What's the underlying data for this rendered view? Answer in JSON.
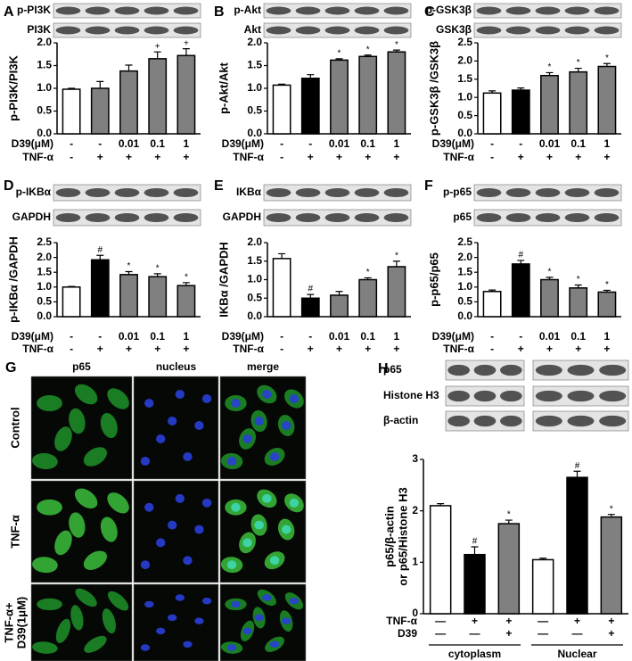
{
  "chart_data": [
    {
      "label": "A",
      "type": "bar",
      "blots": [
        "p-PI3K",
        "PI3K"
      ],
      "ylabel": "p-PI3K/PI3K",
      "ylim": [
        0,
        2
      ],
      "yticks": [
        {
          "value": 0,
          "label": "0.0"
        },
        0.5,
        {
          "value": 1,
          "label": "1.0"
        },
        1.5,
        {
          "value": 2,
          "label": "2.0"
        }
      ],
      "values": [
        0.98,
        1.0,
        1.38,
        1.65,
        1.72
      ],
      "errors": [
        0.02,
        0.15,
        0.13,
        0.15,
        0.15
      ],
      "colors": [
        "#ffffff",
        "#808080",
        "#808080",
        "#808080",
        "#808080"
      ],
      "markers": [
        null,
        null,
        null,
        "+",
        "+"
      ],
      "rows": [
        {
          "label": "D39(μM)",
          "cells": [
            "-",
            "-",
            "0.01",
            "0.1",
            "1"
          ]
        },
        {
          "label": "TNF-α",
          "cells": [
            "-",
            "+",
            "+",
            "+",
            "+"
          ]
        }
      ]
    },
    {
      "label": "B",
      "type": "bar",
      "blots": [
        "p-Akt",
        "Akt"
      ],
      "ylabel": "p-Akt/Akt",
      "ylim": [
        0,
        2
      ],
      "yticks": [
        {
          "value": 0,
          "label": "0.0"
        },
        0.5,
        {
          "value": 1,
          "label": "1.0"
        },
        1.5,
        {
          "value": 2,
          "label": "2.0"
        }
      ],
      "values": [
        1.07,
        1.22,
        1.62,
        1.7,
        1.8
      ],
      "errors": [
        0.02,
        0.08,
        0.03,
        0.03,
        0.04
      ],
      "colors": [
        "#ffffff",
        "#000000",
        "#808080",
        "#808080",
        "#808080"
      ],
      "markers": [
        null,
        null,
        "*",
        "*",
        "*"
      ],
      "rows": [
        {
          "label": "D39(μM)",
          "cells": [
            "-",
            "-",
            "0.01",
            "0.1",
            "1"
          ]
        },
        {
          "label": "TNF-α",
          "cells": [
            "-",
            "+",
            "+",
            "+",
            "+"
          ]
        }
      ]
    },
    {
      "label": "C",
      "type": "bar",
      "blots": [
        "p-GSK3β",
        "GSK3β"
      ],
      "ylabel": "p-GSK3β /GSK3β",
      "ylim": [
        0,
        2.5
      ],
      "yticks": [
        {
          "value": 0,
          "label": "0.0"
        },
        0.5,
        {
          "value": 1,
          "label": "1.0"
        },
        1.5,
        {
          "value": 2,
          "label": "2.0"
        },
        2.5
      ],
      "values": [
        1.12,
        1.2,
        1.6,
        1.7,
        1.85
      ],
      "errors": [
        0.06,
        0.06,
        0.08,
        0.1,
        0.08
      ],
      "colors": [
        "#ffffff",
        "#000000",
        "#808080",
        "#808080",
        "#808080"
      ],
      "markers": [
        null,
        null,
        "*",
        "*",
        "*"
      ],
      "rows": [
        {
          "label": "D39(μM)",
          "cells": [
            "-",
            "-",
            "0.01",
            "0.1",
            "1"
          ]
        },
        {
          "label": "TNF-α",
          "cells": [
            "-",
            "+",
            "+",
            "+",
            "+"
          ]
        }
      ]
    },
    {
      "label": "D",
      "type": "bar",
      "blots": [
        "p-IKBα",
        "GAPDH"
      ],
      "ylabel": "p-IKBα /GAPDH",
      "ylim": [
        0,
        2.5
      ],
      "yticks": [
        {
          "value": 0,
          "label": "0.0"
        },
        0.5,
        {
          "value": 1,
          "label": "1.0"
        },
        1.5,
        {
          "value": 2,
          "label": "2.0"
        },
        2.5
      ],
      "values": [
        1.0,
        1.92,
        1.42,
        1.35,
        1.05
      ],
      "errors": [
        0.02,
        0.15,
        0.1,
        0.1,
        0.1
      ],
      "colors": [
        "#ffffff",
        "#000000",
        "#808080",
        "#808080",
        "#808080"
      ],
      "markers": [
        null,
        "#",
        "*",
        "*",
        "*"
      ],
      "rows": [
        {
          "label": "D39(μM)",
          "cells": [
            "-",
            "-",
            "0.01",
            "0.1",
            "1"
          ]
        },
        {
          "label": "TNF-α",
          "cells": [
            "-",
            "+",
            "+",
            "+",
            "+"
          ]
        }
      ]
    },
    {
      "label": "E",
      "type": "bar",
      "blots": [
        "IKBα",
        "GAPDH"
      ],
      "ylabel": "IKBα /GAPDH",
      "ylim": [
        0,
        2
      ],
      "yticks": [
        {
          "value": 0,
          "label": "0.0"
        },
        0.5,
        {
          "value": 1,
          "label": "1.0"
        },
        1.5,
        {
          "value": 2,
          "label": "2.0"
        }
      ],
      "values": [
        1.57,
        0.5,
        0.58,
        1.0,
        1.35
      ],
      "errors": [
        0.13,
        0.1,
        0.1,
        0.05,
        0.15
      ],
      "colors": [
        "#ffffff",
        "#000000",
        "#808080",
        "#808080",
        "#808080"
      ],
      "markers": [
        null,
        "#",
        null,
        "*",
        "*"
      ],
      "rows": [
        {
          "label": "D39(μM)",
          "cells": [
            "-",
            "-",
            "0.01",
            "0.1",
            "1"
          ]
        },
        {
          "label": "TNF-α",
          "cells": [
            "-",
            "+",
            "+",
            "+",
            "+"
          ]
        }
      ]
    },
    {
      "label": "F",
      "type": "bar",
      "blots": [
        "p-p65",
        "p65"
      ],
      "ylabel": "p-p65/p65",
      "ylim": [
        0,
        2.5
      ],
      "yticks": [
        {
          "value": 0,
          "label": "0.0"
        },
        0.5,
        {
          "value": 1,
          "label": "1.0"
        },
        1.5,
        {
          "value": 2,
          "label": "2.0"
        },
        2.5
      ],
      "values": [
        0.85,
        1.78,
        1.25,
        0.97,
        0.83
      ],
      "errors": [
        0.05,
        0.12,
        0.08,
        0.1,
        0.06
      ],
      "colors": [
        "#ffffff",
        "#000000",
        "#808080",
        "#808080",
        "#808080"
      ],
      "markers": [
        null,
        "#",
        "*",
        "*",
        "*"
      ],
      "rows": [
        {
          "label": "D39(μM)",
          "cells": [
            "-",
            "-",
            "0.01",
            "0.1",
            "1"
          ]
        },
        {
          "label": "TNF-α",
          "cells": [
            "-",
            "+",
            "+",
            "+",
            "+"
          ]
        }
      ]
    },
    {
      "label": "H",
      "type": "bar",
      "blots": [
        "p65",
        "Histone H3",
        "β-actin"
      ],
      "ylabel": [
        "p65/β-actin",
        "or p65/Histone H3"
      ],
      "ylim": [
        0,
        3
      ],
      "yticks": [
        0,
        1,
        2,
        3
      ],
      "values": [
        2.1,
        1.15,
        1.75,
        1.05,
        2.65,
        1.88
      ],
      "errors": [
        0.04,
        0.15,
        0.07,
        0.03,
        0.12,
        0.05
      ],
      "colors": [
        "#ffffff",
        "#000000",
        "#808080",
        "#ffffff",
        "#000000",
        "#808080"
      ],
      "markers": [
        null,
        "#",
        "*",
        null,
        "#",
        "*"
      ],
      "rows": [
        {
          "label": "TNF-α",
          "cells": [
            "—",
            "+",
            "+",
            "—",
            "+",
            "+"
          ]
        },
        {
          "label": "D39",
          "cells": [
            "—",
            "—",
            "+",
            "—",
            "—",
            "+"
          ]
        }
      ],
      "groups": [
        "cytoplasm",
        "Nuclear"
      ]
    }
  ],
  "image_panel": {
    "label": "G",
    "columns": [
      "p65",
      "nucleus",
      "merge"
    ],
    "rows": [
      [
        "Control"
      ],
      [
        "TNF-α"
      ],
      [
        "TNF-α+",
        "D39(1μM)"
      ]
    ]
  }
}
